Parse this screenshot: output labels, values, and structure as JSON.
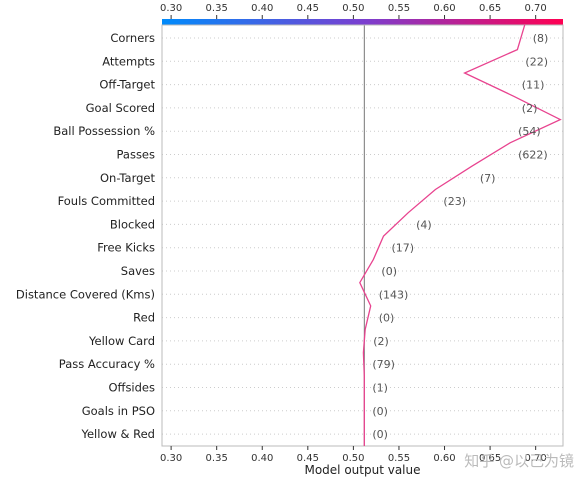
{
  "chart_data": {
    "type": "line",
    "subtype": "shap-decision-plot",
    "xlabel": "Model output value",
    "xlim": [
      0.29,
      0.73
    ],
    "xticks": [
      0.3,
      0.35,
      0.4,
      0.45,
      0.5,
      0.55,
      0.6,
      0.65,
      0.7
    ],
    "xtick_labels": [
      "0.30",
      "0.35",
      "0.40",
      "0.45",
      "0.50",
      "0.55",
      "0.60",
      "0.65",
      "0.70"
    ],
    "base_value": 0.512,
    "grid": "horizontal-dotted",
    "colorbar": {
      "position": "top",
      "colors": [
        "#008bfb",
        "#7a3fd0",
        "#ff0052"
      ]
    },
    "line_color": "#e8438f",
    "features": [
      {
        "label": "Corners",
        "value": "(8)",
        "output": 0.68
      },
      {
        "label": "Attempts",
        "value": "(22)",
        "output": 0.622
      },
      {
        "label": "Off-Target",
        "value": "(11)",
        "output": 0.676
      },
      {
        "label": "Goal Scored",
        "value": "(2)",
        "output": 0.727
      },
      {
        "label": "Ball Possession %",
        "value": "(54)",
        "output": 0.672
      },
      {
        "label": "Passes",
        "value": "(622)",
        "output": 0.63
      },
      {
        "label": "On-Target",
        "value": "(7)",
        "output": 0.59
      },
      {
        "label": "Fouls Committed",
        "value": "(23)",
        "output": 0.56
      },
      {
        "label": "Blocked",
        "value": "(4)",
        "output": 0.533
      },
      {
        "label": "Free Kicks",
        "value": "(17)",
        "output": 0.522
      },
      {
        "label": "Saves",
        "value": "(0)",
        "output": 0.507
      },
      {
        "label": "Distance Covered (Kms)",
        "value": "(143)",
        "output": 0.519
      },
      {
        "label": "Red",
        "value": "(0)",
        "output": 0.513
      },
      {
        "label": "Yellow Card",
        "value": "(2)",
        "output": 0.511
      },
      {
        "label": "Pass Accuracy %",
        "value": "(79)",
        "output": 0.512
      },
      {
        "label": "Offsides",
        "value": "(1)",
        "output": 0.512
      },
      {
        "label": "Goals in PSO",
        "value": "(0)",
        "output": 0.512
      },
      {
        "label": "Yellow & Red",
        "value": "(0)",
        "output": 0.512
      }
    ]
  },
  "watermark": "知乎 @以己为镜"
}
